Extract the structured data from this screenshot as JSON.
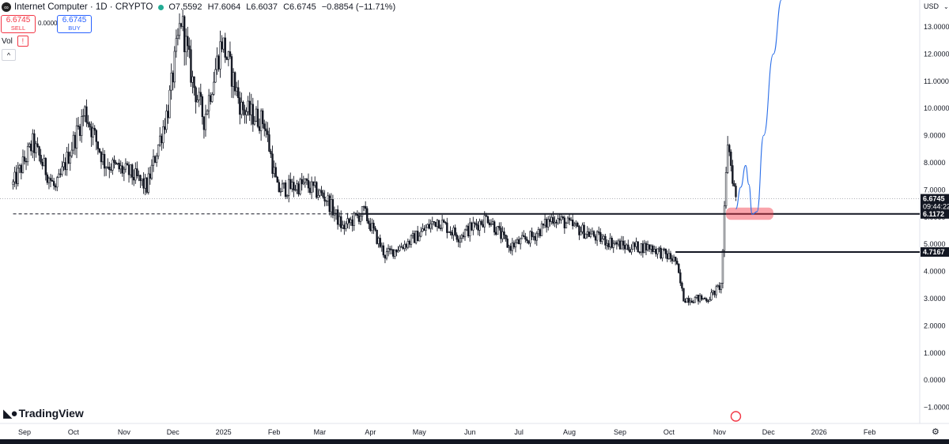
{
  "header": {
    "symbol": "Internet Computer · 1D · CRYPTO",
    "ohlc": [
      "O7.5592",
      "H7.6064",
      "L6.6037",
      "C6.6745",
      "−0.8854 (−11.71%)"
    ]
  },
  "trade": {
    "sell_price": "6.6745",
    "sell_label": "SELL",
    "spread": "0.0000",
    "buy_price": "6.6745",
    "buy_label": "BUY"
  },
  "indicator": {
    "vol_label": "Vol",
    "warn": "!"
  },
  "currency": "USD",
  "branding": "TradingView",
  "colors": {
    "candle": "#131722",
    "projection": "#2a6ee8",
    "highlight": "#f23645",
    "price_tag": "#131722"
  },
  "chart_data": {
    "type": "candlestick",
    "title": "Internet Computer · 1D · CRYPTO",
    "ylim": [
      -1.3,
      14.0
    ],
    "y_ticks": [
      "13.0000",
      "12.0000",
      "11.0000",
      "10.0000",
      "9.0000",
      "8.0000",
      "7.0000",
      "6.0000",
      "5.0000",
      "4.0000",
      "3.0000",
      "2.0000",
      "1.0000",
      "0.0000",
      "−1.0000"
    ],
    "y_tick_values": [
      13,
      12,
      11,
      10,
      9,
      8,
      7,
      6,
      5,
      4,
      3,
      2,
      1,
      0,
      -1
    ],
    "x_ticks": [
      "Sep",
      "Oct",
      "Nov",
      "Dec",
      "2025",
      "Feb",
      "Mar",
      "Apr",
      "May",
      "Jun",
      "Jul",
      "Aug",
      "Sep",
      "Oct",
      "Nov",
      "Dec",
      "2026",
      "Feb"
    ],
    "x_tick_dates": [
      "2024-09-01",
      "2024-10-01",
      "2024-11-01",
      "2024-12-01",
      "2025-01-01",
      "2025-02-01",
      "2025-03-01",
      "2025-04-01",
      "2025-05-01",
      "2025-06-01",
      "2025-07-01",
      "2025-08-01",
      "2025-09-01",
      "2025-10-01",
      "2025-11-01",
      "2025-12-01",
      "2026-01-01",
      "2026-02-01"
    ],
    "price_anchors": [
      [
        "2024-08-25",
        7.2
      ],
      [
        "2024-09-06",
        8.7
      ],
      [
        "2024-09-20",
        7.0
      ],
      [
        "2024-10-08",
        9.9
      ],
      [
        "2024-10-20",
        8.0
      ],
      [
        "2024-11-05",
        7.6
      ],
      [
        "2024-11-15",
        7.1
      ],
      [
        "2024-11-28",
        10.0
      ],
      [
        "2024-12-06",
        13.3
      ],
      [
        "2024-12-13",
        11.0
      ],
      [
        "2024-12-20",
        9.6
      ],
      [
        "2024-12-31",
        12.5
      ],
      [
        "2025-01-12",
        10.0
      ],
      [
        "2025-01-26",
        9.5
      ],
      [
        "2025-02-03",
        7.0
      ],
      [
        "2025-02-20",
        7.2
      ],
      [
        "2025-03-05",
        6.7
      ],
      [
        "2025-03-15",
        5.6
      ],
      [
        "2025-03-28",
        6.2
      ],
      [
        "2025-04-10",
        4.6
      ],
      [
        "2025-04-25",
        5.1
      ],
      [
        "2025-05-12",
        5.9
      ],
      [
        "2025-05-25",
        5.3
      ],
      [
        "2025-06-12",
        6.0
      ],
      [
        "2025-06-25",
        4.9
      ],
      [
        "2025-07-10",
        5.3
      ],
      [
        "2025-07-22",
        6.0
      ],
      [
        "2025-08-05",
        5.6
      ],
      [
        "2025-08-20",
        5.2
      ],
      [
        "2025-09-05",
        4.9
      ],
      [
        "2025-09-20",
        4.9
      ],
      [
        "2025-10-05",
        4.4
      ],
      [
        "2025-10-10",
        3.0
      ],
      [
        "2025-10-25",
        3.0
      ],
      [
        "2025-11-02",
        3.5
      ],
      [
        "2025-11-06",
        8.8
      ],
      [
        "2025-11-09",
        7.5
      ],
      [
        "2025-11-11",
        6.67
      ]
    ],
    "last_close": 6.6745,
    "price_tags": [
      {
        "value": 6.6745,
        "label": "6.6745",
        "sub": "09:44:22"
      },
      {
        "value": 6.1172,
        "label": "6.1172"
      },
      {
        "value": 4.7167,
        "label": "4.7167"
      }
    ],
    "horizontal_lines": [
      {
        "value": 6.1172,
        "from": "2025-03-25",
        "style": "solid"
      },
      {
        "value": 6.1172,
        "from": "2024-08-25",
        "to": "2025-03-25",
        "style": "dashed"
      },
      {
        "value": 4.7167,
        "from": "2025-10-05",
        "style": "solid"
      }
    ],
    "projection_path": [
      [
        "2025-11-11",
        6.3
      ],
      [
        "2025-11-14",
        7.1
      ],
      [
        "2025-11-17",
        7.9
      ],
      [
        "2025-11-19",
        7.2
      ],
      [
        "2025-11-21",
        6.1
      ],
      [
        "2025-11-24",
        6.2
      ],
      [
        "2025-11-28",
        9.0
      ],
      [
        "2025-12-04",
        12.0
      ],
      [
        "2025-12-09",
        14.0
      ]
    ],
    "highlight_zone": {
      "from": "2025-11-05",
      "to": "2025-12-04",
      "low": 5.9,
      "high": 6.35
    }
  }
}
